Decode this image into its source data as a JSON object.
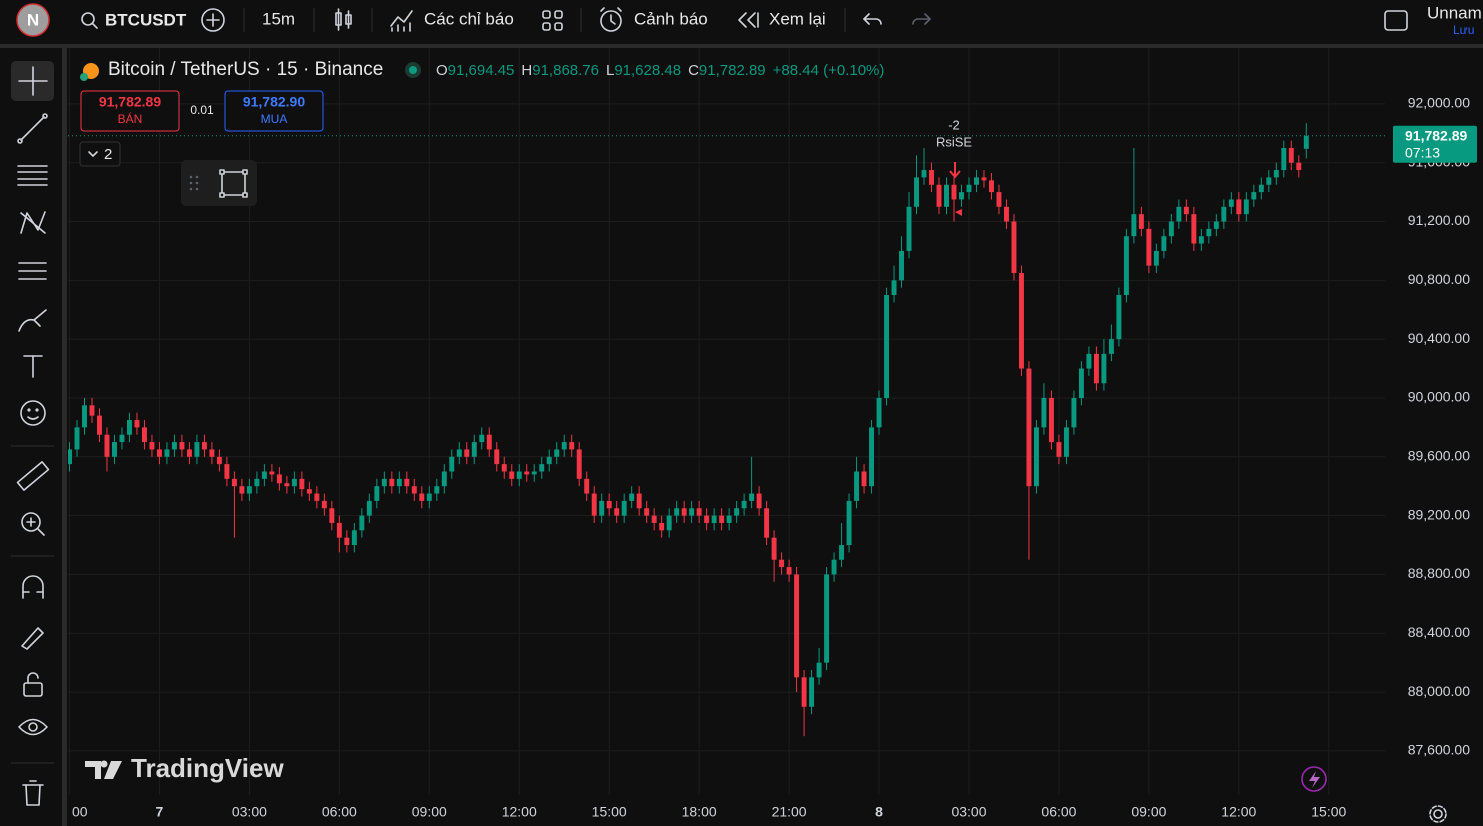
{
  "toolbar": {
    "avatar": "N",
    "symbol": "BTCUSDT",
    "interval": "15m",
    "indicators": "Các chỉ báo",
    "alerts": "Cảnh báo",
    "replay": "Xem lại",
    "layout_name": "Unnam",
    "save": "Lưu"
  },
  "legend": {
    "title": "Bitcoin / TetherUS · 15 · Binance",
    "open_label": "O",
    "open": "91,694.45",
    "high_label": "H",
    "high": "91,868.76",
    "low_label": "L",
    "low": "91,628.48",
    "close_label": "C",
    "close": "91,782.89",
    "change": "+88.44 (+0.10%)"
  },
  "trade": {
    "sell_price": "91,782.89",
    "sell": "BÁN",
    "quantity": "0.01",
    "buy_price": "91,782.90",
    "buy": "MUA"
  },
  "indicators_collapsed": "2",
  "signal": {
    "value": "-2",
    "label": "RsiSE"
  },
  "price_tag": {
    "price": "91,782.89",
    "countdown": "07:13"
  },
  "watermark": "TradingView",
  "chart_data": {
    "type": "candlestick",
    "up_color": "#089981",
    "down_color": "#f23645",
    "grid": true,
    "open": [
      89550,
      89650,
      89800,
      89950,
      89880,
      89750,
      89600,
      89700,
      89750,
      89850,
      89800,
      89700,
      89650,
      89600,
      89650,
      89700,
      89650,
      89600,
      89700,
      89650,
      89600,
      89550,
      89450,
      89400,
      89350,
      89400,
      89450,
      89500,
      89480,
      89420,
      89400,
      89450,
      89380,
      89350,
      89300,
      89250,
      89150,
      89050,
      89000,
      89100,
      89200,
      89300,
      89400,
      89450,
      89400,
      89450,
      89400,
      89350,
      89300,
      89350,
      89400,
      89500,
      89600,
      89650,
      89600,
      89700,
      89750,
      89650,
      89550,
      89500,
      89450,
      89500,
      89480,
      89500,
      89550,
      89600,
      89650,
      89700,
      89650,
      89450,
      89350,
      89200,
      89300,
      89250,
      89200,
      89300,
      89350,
      89250,
      89200,
      89150,
      89100,
      89200,
      89250,
      89200,
      89250,
      89200,
      89150,
      89200,
      89150,
      89200,
      89250,
      89300,
      89350,
      89250,
      89050,
      88900,
      88850,
      88800,
      88100,
      87900,
      88100,
      88200,
      88800,
      88900,
      89000,
      89300,
      89500,
      89400,
      89800,
      90000,
      90700,
      90800,
      91000,
      91300,
      91500,
      91550,
      91450,
      91300,
      91450,
      91350,
      91400,
      91450,
      91500,
      91480,
      91400,
      91300,
      91200,
      90850,
      90200,
      89400,
      89800,
      90000,
      89700,
      89600,
      89800,
      90000,
      90200,
      90300,
      90100,
      90300,
      90400,
      90700,
      91100,
      91250,
      91150,
      90900,
      91000,
      91100,
      91200,
      91300,
      91250,
      91050,
      91100,
      91150,
      91200,
      91300,
      91350,
      91250,
      91350,
      91400,
      91450,
      91500,
      91550,
      91700,
      91600,
      91694.45
    ],
    "high": [
      89700,
      89850,
      90000,
      90000,
      89930,
      89800,
      89750,
      89800,
      89900,
      89900,
      89850,
      89750,
      89700,
      89700,
      89750,
      89750,
      89700,
      89750,
      89750,
      89700,
      89650,
      89600,
      89500,
      89450,
      89450,
      89500,
      89550,
      89550,
      89530,
      89470,
      89500,
      89500,
      89430,
      89400,
      89350,
      89300,
      89200,
      89100,
      89150,
      89250,
      89350,
      89450,
      89500,
      89500,
      89500,
      89500,
      89450,
      89400,
      89400,
      89450,
      89550,
      89650,
      89700,
      89700,
      89750,
      89800,
      89800,
      89700,
      89600,
      89550,
      89550,
      89550,
      89550,
      89600,
      89650,
      89700,
      89750,
      89750,
      89700,
      89500,
      89400,
      89350,
      89350,
      89300,
      89350,
      89400,
      89400,
      89300,
      89250,
      89200,
      89250,
      89300,
      89300,
      89300,
      89300,
      89250,
      89250,
      89250,
      89250,
      89300,
      89350,
      89600,
      89400,
      89300,
      89100,
      88950,
      88900,
      88850,
      88150,
      88150,
      88300,
      88850,
      88950,
      89150,
      89350,
      89600,
      89550,
      89850,
      90050,
      90750,
      90900,
      91100,
      91400,
      91650,
      91700,
      91600,
      91500,
      91500,
      91500,
      91450,
      91500,
      91550,
      91550,
      91530,
      91450,
      91350,
      91250,
      90900,
      90250,
      89850,
      90100,
      90050,
      89750,
      89850,
      90050,
      90250,
      90350,
      90350,
      90400,
      90500,
      90750,
      91150,
      91700,
      91300,
      91200,
      91050,
      91150,
      91250,
      91350,
      91350,
      91300,
      91150,
      91200,
      91250,
      91350,
      91400,
      91400,
      91400,
      91450,
      91500,
      91550,
      91600,
      91750,
      91750,
      91650,
      91868.76
    ],
    "low": [
      89500,
      89600,
      89750,
      89830,
      89700,
      89500,
      89550,
      89650,
      89700,
      89750,
      89650,
      89600,
      89550,
      89550,
      89600,
      89600,
      89550,
      89550,
      89600,
      89550,
      89500,
      89400,
      89050,
      89300,
      89300,
      89350,
      89400,
      89430,
      89370,
      89350,
      89350,
      89330,
      89300,
      89250,
      89200,
      89100,
      88950,
      88950,
      88950,
      89050,
      89150,
      89250,
      89350,
      89350,
      89350,
      89350,
      89300,
      89250,
      89250,
      89300,
      89350,
      89450,
      89550,
      89550,
      89550,
      89650,
      89600,
      89500,
      89450,
      89400,
      89400,
      89430,
      89430,
      89450,
      89500,
      89550,
      89600,
      89600,
      89400,
      89300,
      89150,
      89150,
      89200,
      89150,
      89150,
      89250,
      89200,
      89150,
      89100,
      89050,
      89050,
      89150,
      89150,
      89150,
      89150,
      89100,
      89100,
      89100,
      89100,
      89150,
      89200,
      89250,
      89200,
      89000,
      88750,
      88800,
      88750,
      88000,
      87700,
      87850,
      88050,
      88150,
      88750,
      88850,
      88950,
      89250,
      89350,
      89350,
      89750,
      89950,
      90650,
      90750,
      90950,
      91250,
      91450,
      91400,
      91250,
      91250,
      91200,
      91300,
      91350,
      91400,
      91430,
      91350,
      91250,
      91150,
      90800,
      90150,
      88900,
      89350,
      89750,
      89650,
      89550,
      89550,
      89750,
      89950,
      90150,
      90050,
      90050,
      90250,
      90350,
      90650,
      91050,
      91100,
      90850,
      90850,
      90950,
      91050,
      91150,
      91200,
      91000,
      91000,
      91050,
      91100,
      91150,
      91250,
      91200,
      91200,
      91300,
      91350,
      91400,
      91450,
      91500,
      91550,
      91500,
      91628.48
    ],
    "close": [
      89650,
      89800,
      89950,
      89880,
      89750,
      89600,
      89700,
      89750,
      89850,
      89800,
      89700,
      89650,
      89600,
      89650,
      89700,
      89650,
      89600,
      89700,
      89650,
      89600,
      89550,
      89450,
      89400,
      89350,
      89400,
      89450,
      89500,
      89480,
      89420,
      89400,
      89450,
      89380,
      89350,
      89300,
      89250,
      89150,
      89050,
      89000,
      89100,
      89200,
      89300,
      89400,
      89450,
      89400,
      89450,
      89400,
      89350,
      89300,
      89350,
      89400,
      89500,
      89600,
      89650,
      89600,
      89700,
      89750,
      89650,
      89550,
      89500,
      89450,
      89500,
      89480,
      89500,
      89550,
      89600,
      89650,
      89700,
      89650,
      89450,
      89350,
      89200,
      89300,
      89250,
      89200,
      89300,
      89350,
      89250,
      89200,
      89150,
      89100,
      89200,
      89250,
      89200,
      89250,
      89200,
      89150,
      89200,
      89150,
      89200,
      89250,
      89300,
      89350,
      89250,
      89050,
      88900,
      88850,
      88800,
      88100,
      87900,
      88100,
      88200,
      88800,
      88900,
      89000,
      89300,
      89500,
      89400,
      89800,
      90000,
      90700,
      90800,
      91000,
      91300,
      91500,
      91550,
      91450,
      91300,
      91450,
      91350,
      91400,
      91450,
      91500,
      91480,
      91400,
      91300,
      91200,
      90850,
      90200,
      89400,
      89800,
      90000,
      89700,
      89600,
      89800,
      90000,
      90200,
      90300,
      90100,
      90300,
      90400,
      90700,
      91100,
      91250,
      91150,
      90900,
      91000,
      91100,
      91200,
      91300,
      91250,
      91050,
      91100,
      91150,
      91200,
      91300,
      91350,
      91250,
      91350,
      91400,
      91450,
      91500,
      91550,
      91700,
      91600,
      91550,
      91782.89
    ],
    "ylim": [
      87300,
      92380
    ],
    "yticks": [
      {
        "value": 87600,
        "label": "87,600.00"
      },
      {
        "value": 88000,
        "label": "88,000.00"
      },
      {
        "value": 88400,
        "label": "88,400.00"
      },
      {
        "value": 88800,
        "label": "88,800.00"
      },
      {
        "value": 89200,
        "label": "89,200.00"
      },
      {
        "value": 89600,
        "label": "89,600.00"
      },
      {
        "value": 90000,
        "label": "90,000.00"
      },
      {
        "value": 90400,
        "label": "90,400.00"
      },
      {
        "value": 90800,
        "label": "90,800.00"
      },
      {
        "value": 91200,
        "label": "91,200.00"
      },
      {
        "value": 91600,
        "label": "91,600.00"
      },
      {
        "value": 92000,
        "label": "92,000.00"
      }
    ],
    "xlim": [
      -0.2,
      175.5
    ],
    "xticks": [
      {
        "value": 0,
        "label": "00"
      },
      {
        "value": 12,
        "label": "7"
      },
      {
        "value": 24,
        "label": "03:00"
      },
      {
        "value": 36,
        "label": "06:00"
      },
      {
        "value": 48,
        "label": "09:00"
      },
      {
        "value": 60,
        "label": "12:00"
      },
      {
        "value": 72,
        "label": "15:00"
      },
      {
        "value": 84,
        "label": "18:00"
      },
      {
        "value": 96,
        "label": "21:00"
      },
      {
        "value": 108,
        "label": "8"
      },
      {
        "value": 120,
        "label": "03:00"
      },
      {
        "value": 132,
        "label": "06:00"
      },
      {
        "value": 144,
        "label": "09:00"
      },
      {
        "value": 156,
        "label": "12:00"
      },
      {
        "value": 168,
        "label": "15:00"
      }
    ]
  }
}
